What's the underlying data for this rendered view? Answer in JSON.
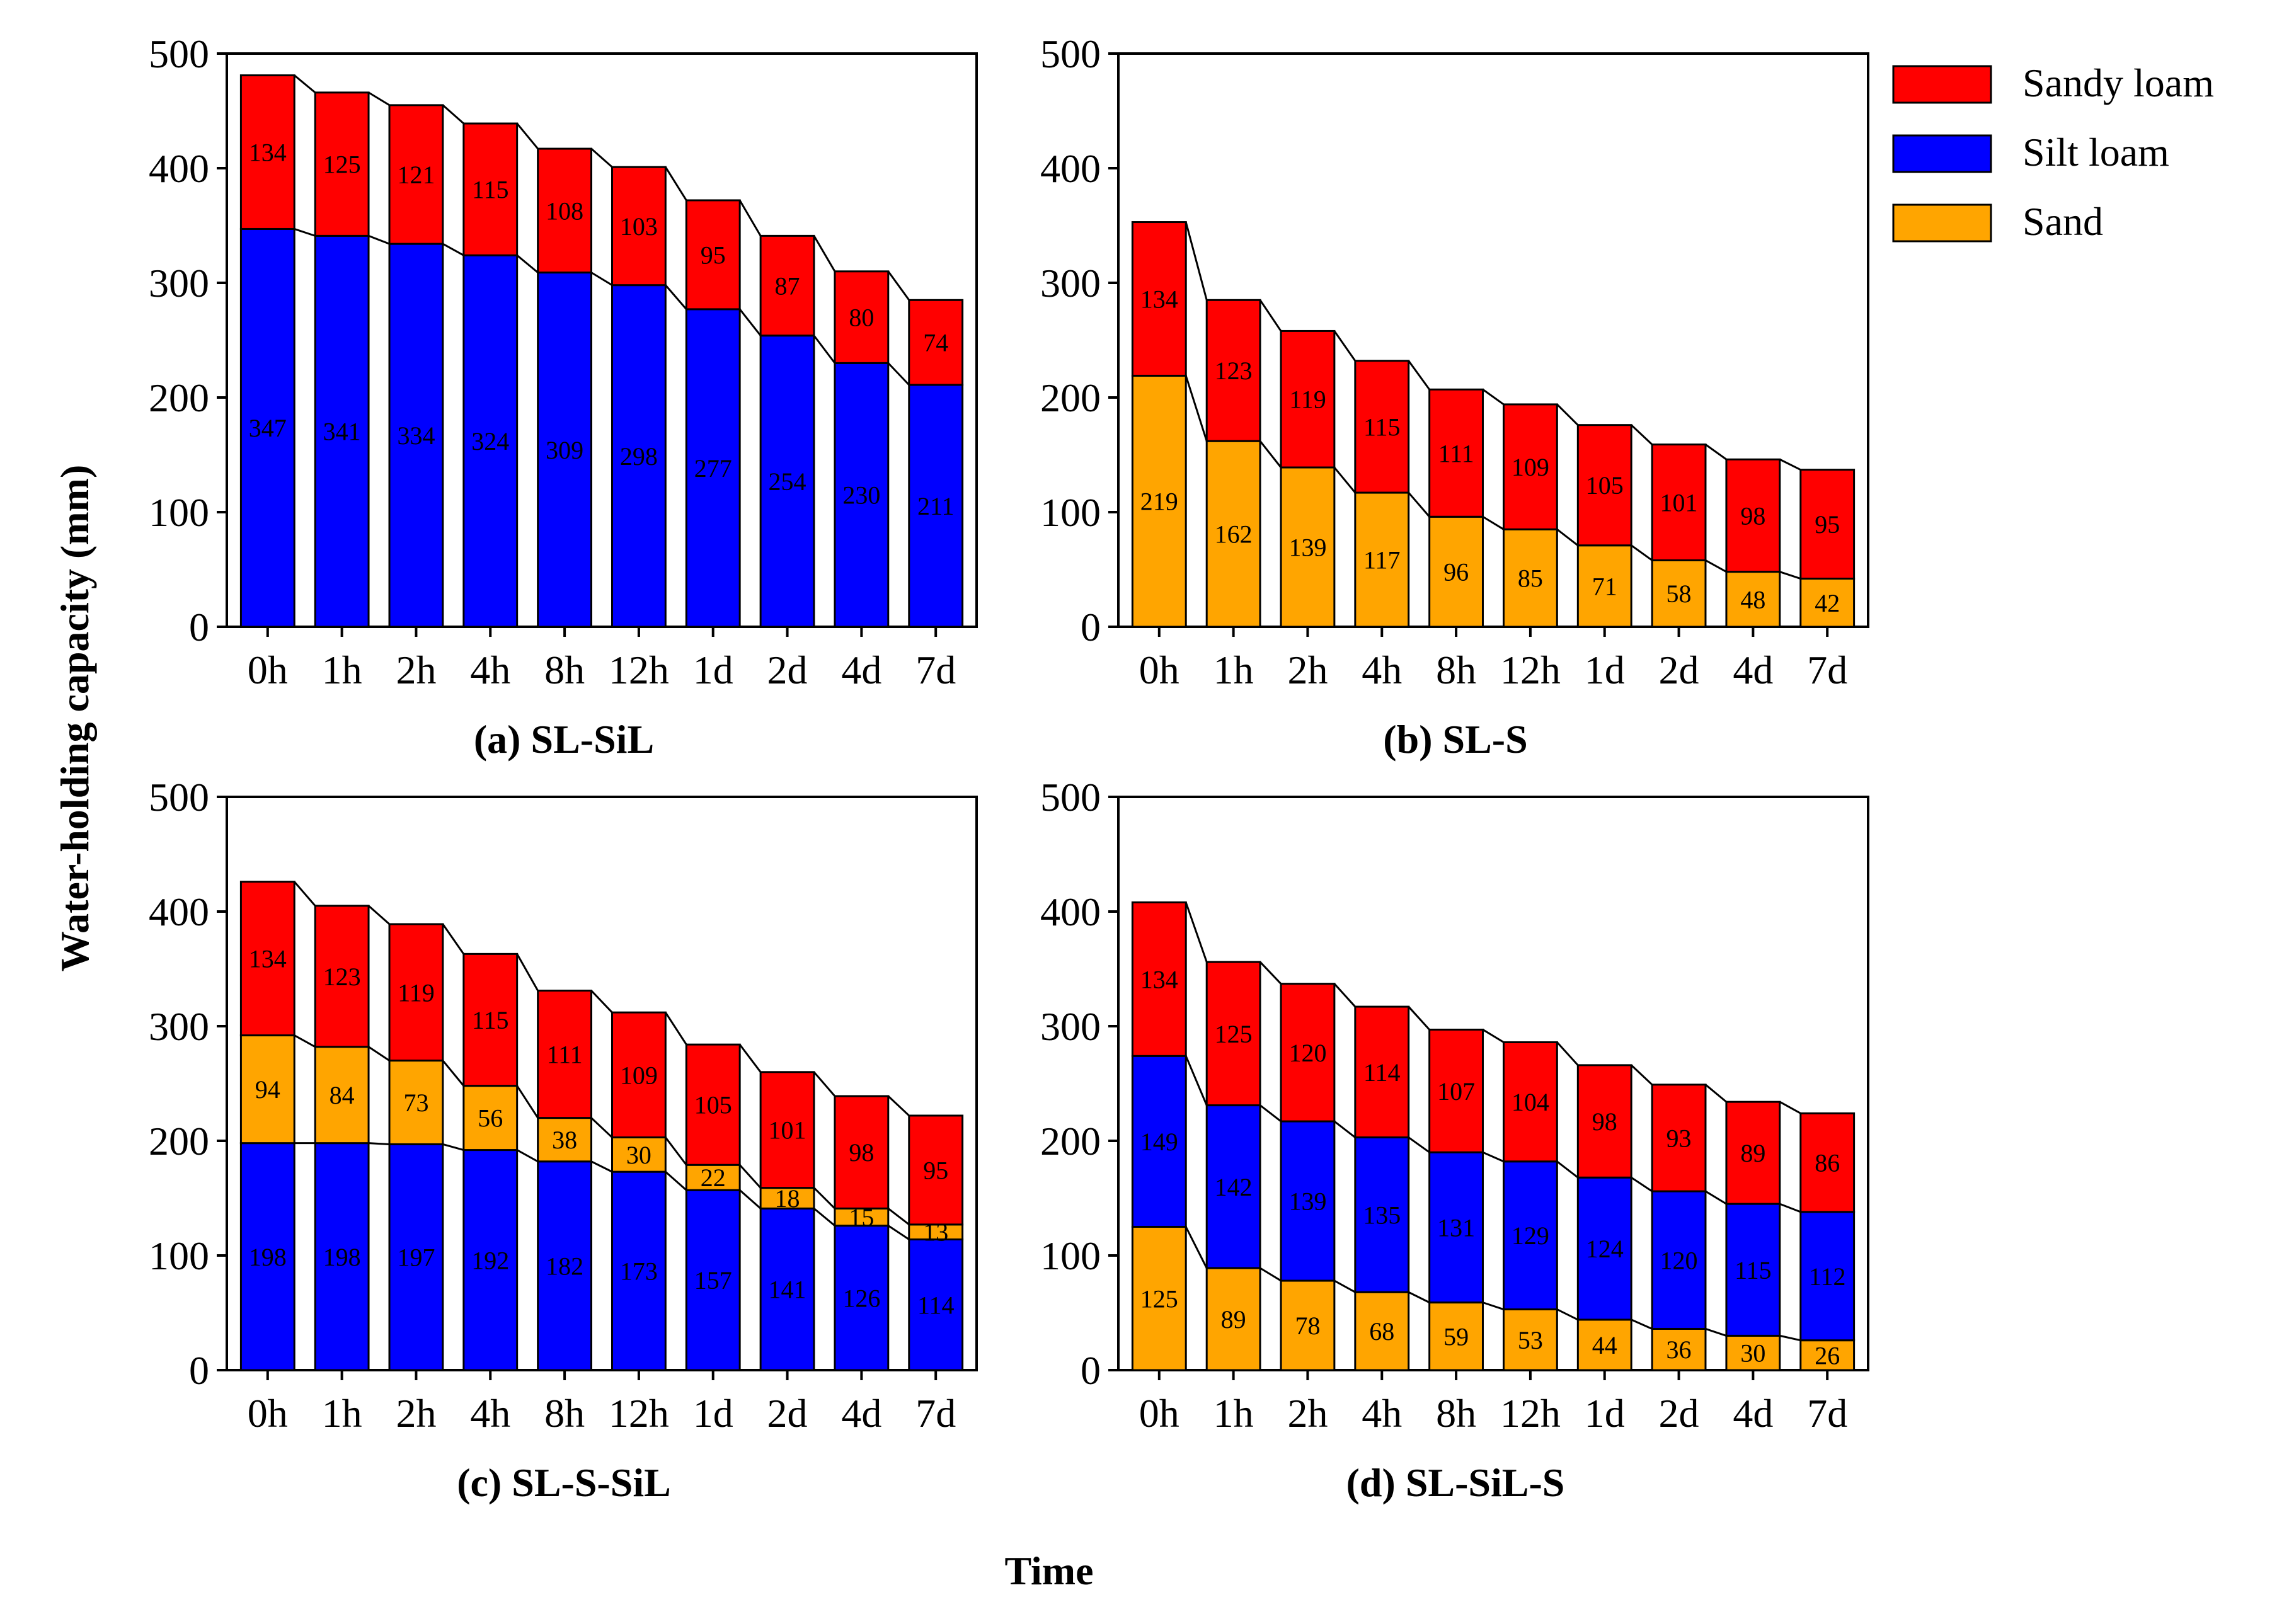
{
  "figure": {
    "ylabel": "Water-holding capacity (mm)",
    "xlabel": "Time"
  },
  "legend": [
    {
      "name": "Sandy loam",
      "color": "#FF0000"
    },
    {
      "name": "Silt loam",
      "color": "#0000FF"
    },
    {
      "name": "Sand",
      "color": "#FFA500"
    }
  ],
  "chart_data": [
    {
      "type": "bar",
      "stacked": true,
      "title": "(a) SL-SiL",
      "categories": [
        "0h",
        "1h",
        "2h",
        "4h",
        "8h",
        "12h",
        "1d",
        "2d",
        "4d",
        "7d"
      ],
      "ylim": [
        0,
        500
      ],
      "yticks": [
        0,
        100,
        200,
        300,
        400,
        500
      ],
      "series": [
        {
          "name": "Silt loam",
          "values": [
            347,
            341,
            334,
            324,
            309,
            298,
            277,
            254,
            230,
            211
          ]
        },
        {
          "name": "Sandy loam",
          "values": [
            134,
            125,
            121,
            115,
            108,
            103,
            95,
            87,
            80,
            74
          ]
        }
      ]
    },
    {
      "type": "bar",
      "stacked": true,
      "title": "(b) SL-S",
      "categories": [
        "0h",
        "1h",
        "2h",
        "4h",
        "8h",
        "12h",
        "1d",
        "2d",
        "4d",
        "7d"
      ],
      "ylim": [
        0,
        500
      ],
      "yticks": [
        0,
        100,
        200,
        300,
        400,
        500
      ],
      "series": [
        {
          "name": "Sand",
          "values": [
            219,
            162,
            139,
            117,
            96,
            85,
            71,
            58,
            48,
            42
          ]
        },
        {
          "name": "Sandy loam",
          "values": [
            134,
            123,
            119,
            115,
            111,
            109,
            105,
            101,
            98,
            95
          ]
        }
      ]
    },
    {
      "type": "bar",
      "stacked": true,
      "title": "(c) SL-S-SiL",
      "categories": [
        "0h",
        "1h",
        "2h",
        "4h",
        "8h",
        "12h",
        "1d",
        "2d",
        "4d",
        "7d"
      ],
      "ylim": [
        0,
        500
      ],
      "yticks": [
        0,
        100,
        200,
        300,
        400,
        500
      ],
      "series": [
        {
          "name": "Silt loam",
          "values": [
            198,
            198,
            197,
            192,
            182,
            173,
            157,
            141,
            126,
            114
          ]
        },
        {
          "name": "Sand",
          "values": [
            94,
            84,
            73,
            56,
            38,
            30,
            22,
            18,
            15,
            13
          ]
        },
        {
          "name": "Sandy loam",
          "values": [
            134,
            123,
            119,
            115,
            111,
            109,
            105,
            101,
            98,
            95
          ]
        }
      ]
    },
    {
      "type": "bar",
      "stacked": true,
      "title": "(d) SL-SiL-S",
      "categories": [
        "0h",
        "1h",
        "2h",
        "4h",
        "8h",
        "12h",
        "1d",
        "2d",
        "4d",
        "7d"
      ],
      "ylim": [
        0,
        500
      ],
      "yticks": [
        0,
        100,
        200,
        300,
        400,
        500
      ],
      "series": [
        {
          "name": "Sand",
          "values": [
            125,
            89,
            78,
            68,
            59,
            53,
            44,
            36,
            30,
            26
          ]
        },
        {
          "name": "Silt loam",
          "values": [
            149,
            142,
            139,
            135,
            131,
            129,
            124,
            120,
            115,
            112
          ]
        },
        {
          "name": "Sandy loam",
          "values": [
            134,
            125,
            120,
            114,
            107,
            104,
            98,
            93,
            89,
            86
          ]
        }
      ]
    }
  ]
}
